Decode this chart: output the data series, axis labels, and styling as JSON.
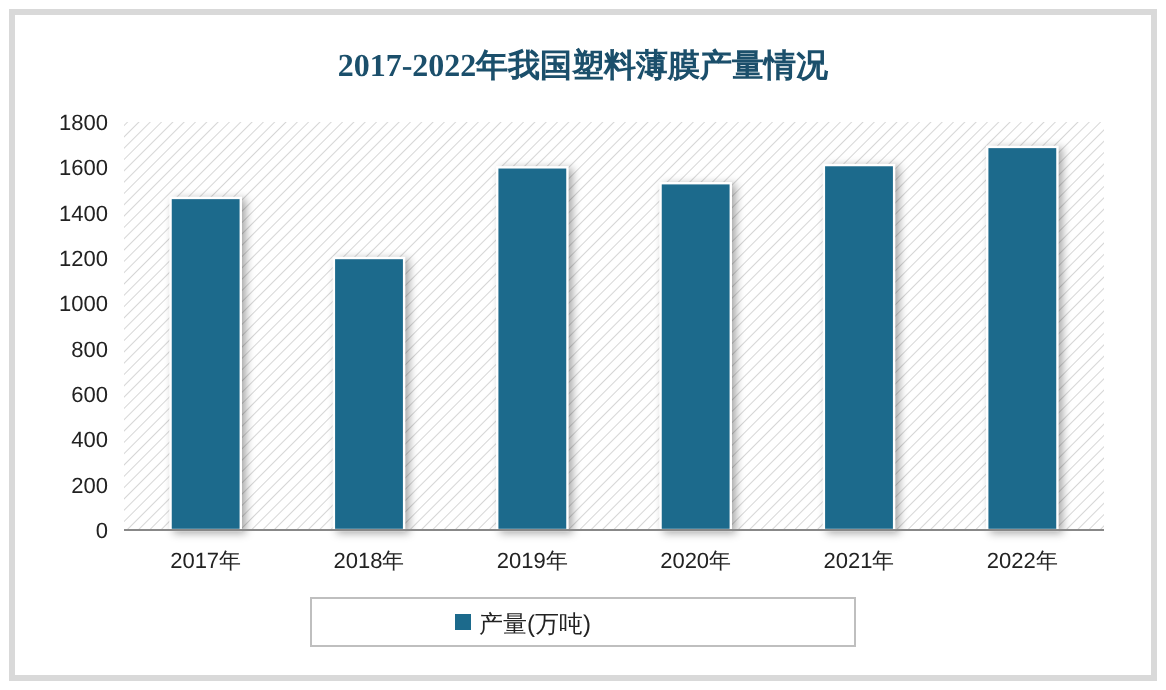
{
  "chart_data": {
    "type": "bar",
    "title": "2017-2022年我国塑料薄膜产量情况",
    "categories": [
      "2017年",
      "2018年",
      "2019年",
      "2020年",
      "2021年",
      "2022年"
    ],
    "series": [
      {
        "name": "产量(万吨)",
        "color": "#1c6a8c",
        "values": [
          1465,
          1200,
          1600,
          1530,
          1610,
          1690
        ]
      }
    ],
    "ylim": [
      0,
      1800
    ],
    "yticks": [
      0,
      200,
      400,
      600,
      800,
      1000,
      1200,
      1400,
      1600,
      1800
    ],
    "grid": false,
    "legend": "bottom"
  }
}
